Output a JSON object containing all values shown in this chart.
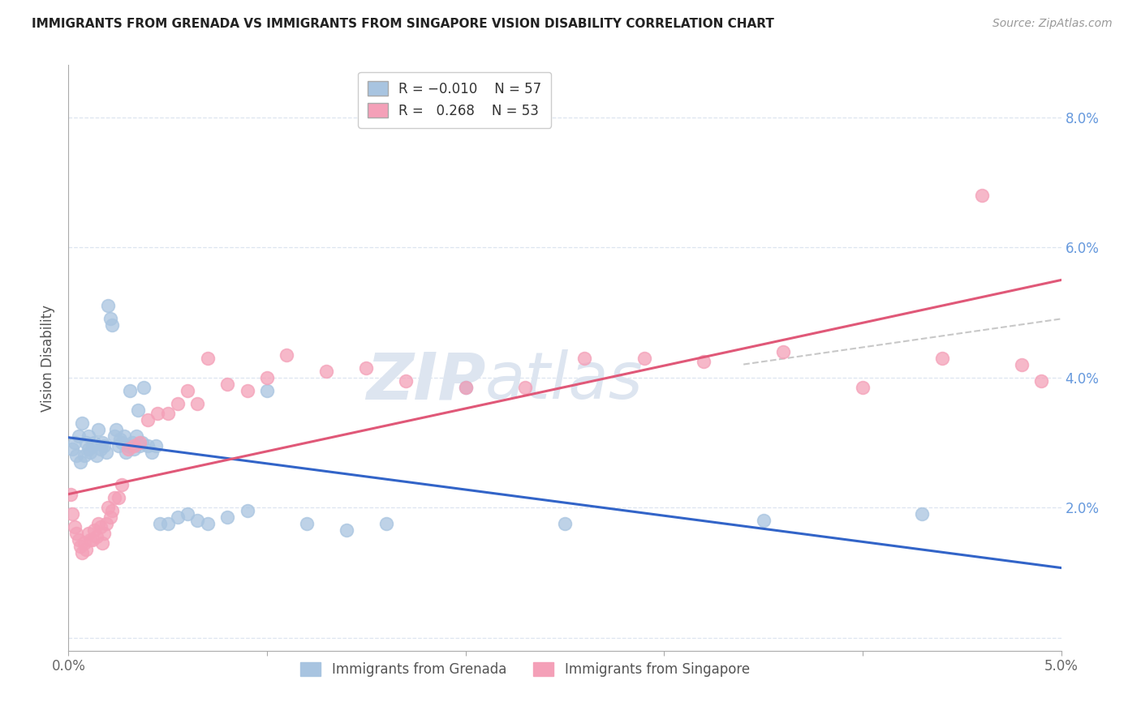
{
  "title": "IMMIGRANTS FROM GRENADA VS IMMIGRANTS FROM SINGAPORE VISION DISABILITY CORRELATION CHART",
  "source": "Source: ZipAtlas.com",
  "ylabel": "Vision Disability",
  "xmin": 0.0,
  "xmax": 0.05,
  "ymin": -0.002,
  "ymax": 0.088,
  "grenada_R": -0.01,
  "grenada_N": 57,
  "singapore_R": 0.268,
  "singapore_N": 53,
  "grenada_color": "#a8c4e0",
  "singapore_color": "#f4a0b8",
  "grenada_line_color": "#3264c8",
  "singapore_line_color": "#e05878",
  "dashed_color": "#c8c8c8",
  "grenada_x": [
    0.0002,
    0.0003,
    0.0004,
    0.0005,
    0.0006,
    0.0007,
    0.0008,
    0.0009,
    0.001,
    0.001,
    0.0011,
    0.0012,
    0.0013,
    0.0014,
    0.0015,
    0.0016,
    0.0017,
    0.0018,
    0.0019,
    0.002,
    0.0021,
    0.0022,
    0.0023,
    0.0024,
    0.0025,
    0.0026,
    0.0027,
    0.0028,
    0.0029,
    0.003,
    0.0031,
    0.0032,
    0.0033,
    0.0034,
    0.0035,
    0.0036,
    0.0037,
    0.0038,
    0.004,
    0.0042,
    0.0044,
    0.0046,
    0.005,
    0.0055,
    0.006,
    0.0065,
    0.007,
    0.008,
    0.009,
    0.01,
    0.012,
    0.014,
    0.016,
    0.02,
    0.025,
    0.035,
    0.043
  ],
  "grenada_y": [
    0.029,
    0.03,
    0.028,
    0.031,
    0.027,
    0.033,
    0.028,
    0.03,
    0.029,
    0.031,
    0.0285,
    0.0295,
    0.03,
    0.028,
    0.032,
    0.029,
    0.03,
    0.0295,
    0.0285,
    0.051,
    0.049,
    0.048,
    0.031,
    0.032,
    0.0295,
    0.0305,
    0.03,
    0.031,
    0.0285,
    0.0295,
    0.038,
    0.03,
    0.029,
    0.031,
    0.035,
    0.0295,
    0.03,
    0.0385,
    0.0295,
    0.0285,
    0.0295,
    0.0175,
    0.0175,
    0.0185,
    0.019,
    0.018,
    0.0175,
    0.0185,
    0.0195,
    0.038,
    0.0175,
    0.0165,
    0.0175,
    0.0385,
    0.0175,
    0.018,
    0.019
  ],
  "singapore_x": [
    0.0001,
    0.0002,
    0.0003,
    0.0004,
    0.0005,
    0.0006,
    0.0007,
    0.0008,
    0.0009,
    0.001,
    0.0011,
    0.0012,
    0.0013,
    0.0014,
    0.0015,
    0.0016,
    0.0017,
    0.0018,
    0.0019,
    0.002,
    0.0021,
    0.0022,
    0.0023,
    0.0025,
    0.0027,
    0.003,
    0.0033,
    0.0036,
    0.004,
    0.0045,
    0.005,
    0.0055,
    0.006,
    0.0065,
    0.007,
    0.008,
    0.009,
    0.01,
    0.011,
    0.013,
    0.015,
    0.017,
    0.02,
    0.023,
    0.026,
    0.029,
    0.032,
    0.036,
    0.04,
    0.044,
    0.046,
    0.048,
    0.049
  ],
  "singapore_y": [
    0.022,
    0.019,
    0.017,
    0.016,
    0.015,
    0.014,
    0.013,
    0.0145,
    0.0135,
    0.016,
    0.015,
    0.015,
    0.0165,
    0.0155,
    0.0175,
    0.017,
    0.0145,
    0.016,
    0.0175,
    0.02,
    0.0185,
    0.0195,
    0.0215,
    0.0215,
    0.0235,
    0.029,
    0.0295,
    0.03,
    0.0335,
    0.0345,
    0.0345,
    0.036,
    0.038,
    0.036,
    0.043,
    0.039,
    0.038,
    0.04,
    0.0435,
    0.041,
    0.0415,
    0.0395,
    0.0385,
    0.0385,
    0.043,
    0.043,
    0.0425,
    0.044,
    0.0385,
    0.043,
    0.068,
    0.042,
    0.0395
  ],
  "watermark_zip": "ZIP",
  "watermark_atlas": "atlas",
  "watermark_color": "#dde5f0",
  "background_color": "#ffffff",
  "grid_color": "#dde5f0",
  "title_fontsize": 11,
  "source_fontsize": 10,
  "tick_fontsize": 12,
  "ylabel_fontsize": 12,
  "legend_fontsize": 12
}
